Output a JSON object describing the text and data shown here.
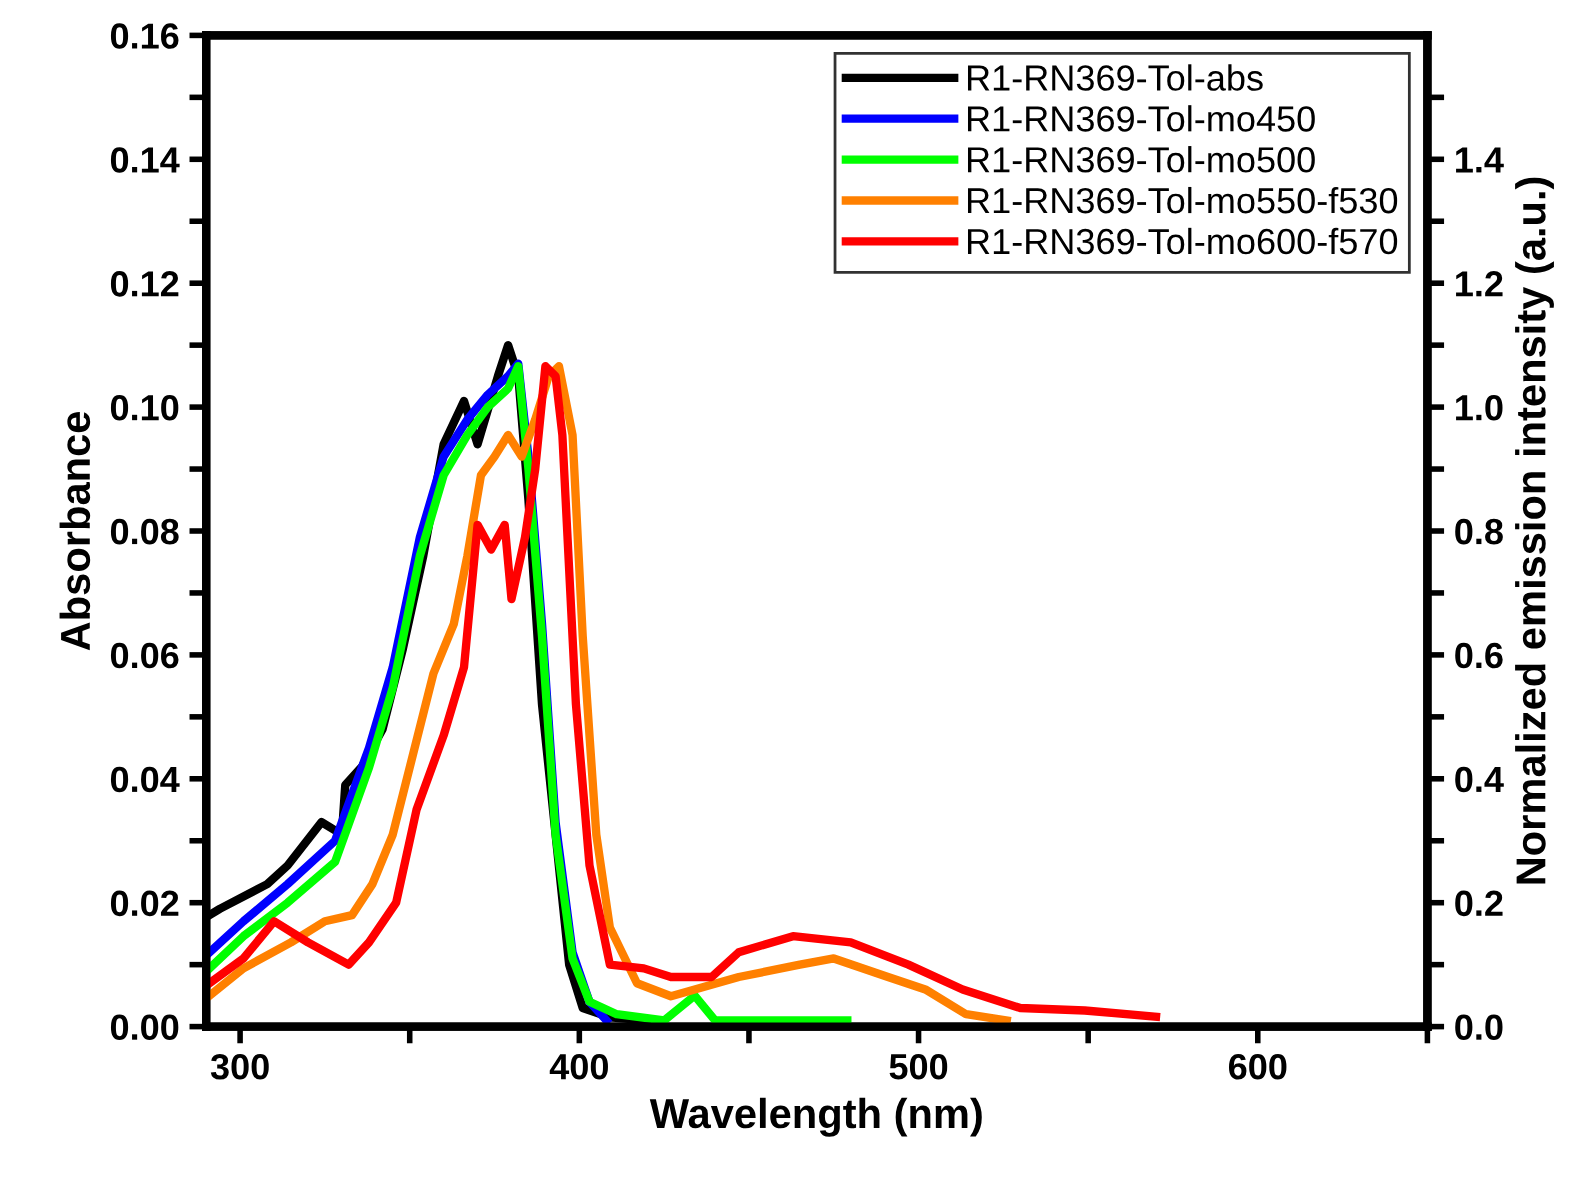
{
  "chart_data": {
    "type": "line",
    "xlabel": "Wavelength (nm)",
    "ylabel": "Absorbance",
    "y2label": "Normalized emission intensity (a.u.)",
    "xlim": [
      290,
      650
    ],
    "xticks": [
      300,
      {
        "value": 350,
        "label": null
      },
      400,
      {
        "value": 450,
        "label": null
      },
      500,
      {
        "value": 550,
        "label": null
      },
      600,
      {
        "value": 650,
        "label": null
      }
    ],
    "ylim": [
      0,
      0.16
    ],
    "yticks": [
      {
        "value": 0,
        "label": "0.00"
      },
      {
        "value": 0.01,
        "label": null
      },
      {
        "value": 0.02,
        "label": "0.02"
      },
      {
        "value": 0.03,
        "label": null
      },
      {
        "value": 0.04,
        "label": "0.04"
      },
      {
        "value": 0.05,
        "label": null
      },
      {
        "value": 0.06,
        "label": "0.06"
      },
      {
        "value": 0.07,
        "label": null
      },
      {
        "value": 0.08,
        "label": "0.08"
      },
      {
        "value": 0.09,
        "label": null
      },
      {
        "value": 0.1,
        "label": "0.10"
      },
      {
        "value": 0.11,
        "label": null
      },
      {
        "value": 0.12,
        "label": "0.12"
      },
      {
        "value": 0.13,
        "label": null
      },
      {
        "value": 0.14,
        "label": "0.14"
      },
      {
        "value": 0.15,
        "label": null
      },
      {
        "value": 0.16,
        "label": "0.16"
      }
    ],
    "y2lim": [
      0,
      1.6
    ],
    "y2ticks": [
      {
        "value": 0,
        "label": "0.0"
      },
      {
        "value": 0.1,
        "label": null
      },
      {
        "value": 0.2,
        "label": "0.2"
      },
      {
        "value": 0.3,
        "label": null
      },
      {
        "value": 0.4,
        "label": "0.4"
      },
      {
        "value": 0.5,
        "label": null
      },
      {
        "value": 0.6,
        "label": "0.6"
      },
      {
        "value": 0.7,
        "label": null
      },
      {
        "value": 0.8,
        "label": "0.8"
      },
      {
        "value": 0.9,
        "label": null
      },
      {
        "value": 1.0,
        "label": "1.0"
      },
      {
        "value": 1.1,
        "label": null
      },
      {
        "value": 1.2,
        "label": "1.2"
      },
      {
        "value": 1.3,
        "label": null
      },
      {
        "value": 1.4,
        "label": "1.4"
      },
      {
        "value": 1.5,
        "label": null
      }
    ],
    "legend": "top right",
    "grid": false,
    "marker": "none",
    "line_style": "solid",
    "series": [
      {
        "name": "R1-RN369-Tol-abs",
        "color": "#000000",
        "x": [
          291,
          294,
          308,
          314,
          324,
          330,
          331,
          336,
          342,
          348,
          354,
          360,
          366,
          370,
          376,
          379,
          382,
          385,
          389,
          393,
          397,
          401,
          409,
          420
        ],
        "values": [
          0.018,
          0.019,
          0.023,
          0.026,
          0.033,
          0.031,
          0.039,
          0.042,
          0.048,
          0.061,
          0.076,
          0.094,
          0.101,
          0.094,
          0.105,
          0.11,
          0.105,
          0.085,
          0.052,
          0.031,
          0.01,
          0.003,
          0.0015,
          0.001
        ]
      },
      {
        "name": "R1-RN369-Tol-mo450",
        "color": "#0000ff",
        "axis": "y2",
        "x": [
          291,
          301,
          314,
          328,
          338,
          345,
          353,
          360,
          367,
          373,
          379,
          382,
          385,
          389,
          393,
          398,
          403,
          408
        ],
        "values": [
          0.12,
          0.17,
          0.23,
          0.3,
          0.45,
          0.58,
          0.79,
          0.92,
          0.98,
          1.02,
          1.05,
          1.07,
          0.92,
          0.65,
          0.33,
          0.12,
          0.04,
          0.01
        ]
      },
      {
        "name": "R1-RN369-Tol-mo500",
        "color": "#00ff00",
        "axis": "y2",
        "x": [
          291,
          301,
          314,
          328,
          338,
          345,
          353,
          360,
          367,
          373,
          379,
          382,
          385,
          389,
          393,
          398,
          403,
          411,
          425,
          434,
          440,
          460,
          479
        ],
        "values": [
          0.094,
          0.146,
          0.2,
          0.266,
          0.418,
          0.547,
          0.76,
          0.89,
          0.955,
          1.0,
          1.03,
          1.066,
          0.9,
          0.63,
          0.31,
          0.11,
          0.04,
          0.02,
          0.01,
          0.05,
          0.01,
          0.01,
          0.01
        ]
      },
      {
        "name": "R1-RN369-Tol-mo550-f530",
        "color": "#ff8000",
        "axis": "y2",
        "x": [
          291,
          301,
          315,
          325,
          333,
          339,
          345,
          351,
          357,
          363,
          367,
          371,
          375,
          379,
          383,
          387,
          391,
          394,
          398,
          401,
          405,
          409,
          417,
          427,
          447,
          465,
          475,
          491,
          502,
          514,
          526
        ],
        "values": [
          0.05,
          0.094,
          0.136,
          0.17,
          0.18,
          0.23,
          0.31,
          0.44,
          0.57,
          0.65,
          0.76,
          0.89,
          0.92,
          0.955,
          0.92,
          0.98,
          1.05,
          1.066,
          0.955,
          0.63,
          0.31,
          0.16,
          0.07,
          0.049,
          0.08,
          0.1,
          0.11,
          0.08,
          0.06,
          0.02,
          0.01
        ]
      },
      {
        "name": "R1-RN369-Tol-mo600-f570",
        "color": "#ff0000",
        "axis": "y2",
        "x": [
          291,
          301,
          310,
          320,
          332,
          338,
          346,
          352,
          360,
          366,
          370,
          374,
          378,
          380,
          384,
          387,
          390,
          393,
          395,
          399,
          403,
          409,
          419,
          427,
          439,
          447,
          463,
          480,
          497,
          513,
          530,
          549,
          570
        ],
        "values": [
          0.07,
          0.11,
          0.17,
          0.136,
          0.1,
          0.136,
          0.2,
          0.35,
          0.47,
          0.58,
          0.81,
          0.77,
          0.81,
          0.69,
          0.79,
          0.9,
          1.066,
          1.05,
          0.955,
          0.52,
          0.26,
          0.1,
          0.094,
          0.08,
          0.08,
          0.12,
          0.146,
          0.136,
          0.1,
          0.06,
          0.03,
          0.026,
          0.016
        ]
      }
    ]
  }
}
